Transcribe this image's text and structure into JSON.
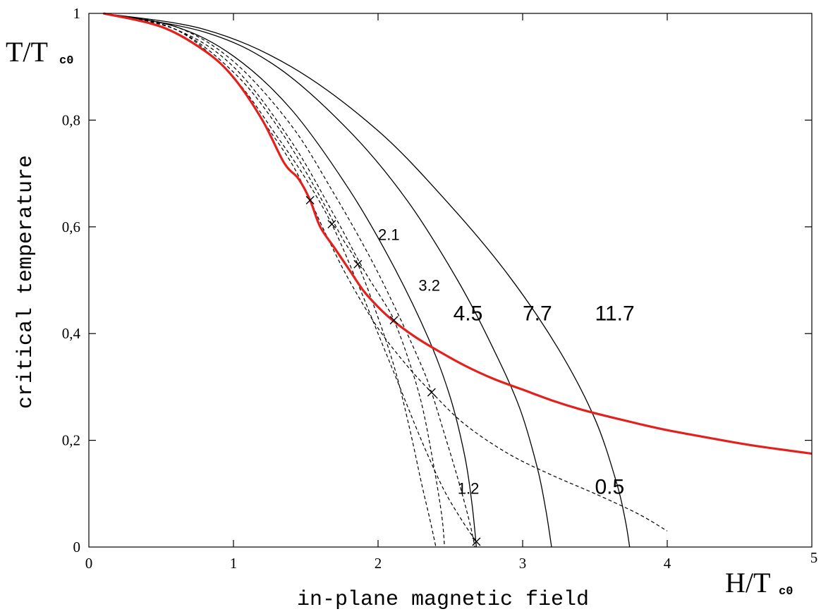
{
  "chart_data": {
    "type": "line",
    "xlabel": "in-plane magnetic field",
    "ylabel": "critical temperature",
    "x_unit": {
      "main": "H/T",
      "sub": "c0"
    },
    "y_unit": {
      "main": "T/T",
      "sub": "c0"
    },
    "xlim": [
      0,
      5
    ],
    "ylim": [
      0,
      1
    ],
    "x_ticks": [
      0,
      1,
      2,
      3,
      4,
      5
    ],
    "x_tick_labels": [
      "0",
      "1",
      "2",
      "3",
      "4",
      "5"
    ],
    "y_ticks": [
      0,
      0.2,
      0.4,
      0.6,
      0.8,
      1
    ],
    "y_tick_labels": [
      "0",
      "0,2",
      "0,4",
      "0,6",
      "0,8",
      "1"
    ],
    "grid": false,
    "series": [
      {
        "style": "thick-red",
        "color": "#e3201b",
        "x": [
          0.1,
          0.5,
          0.8,
          1.0,
          1.2,
          1.35,
          1.45,
          1.53,
          1.6,
          1.7,
          1.8,
          1.9,
          2.0,
          2.1,
          2.25,
          2.4,
          2.6,
          2.8,
          3.0,
          3.2,
          3.4,
          3.6,
          3.8,
          4.0,
          4.3,
          4.6,
          5.0
        ],
        "y": [
          1.0,
          0.975,
          0.93,
          0.88,
          0.8,
          0.72,
          0.69,
          0.65,
          0.6,
          0.56,
          0.52,
          0.48,
          0.45,
          0.425,
          0.395,
          0.37,
          0.34,
          0.315,
          0.295,
          0.275,
          0.258,
          0.244,
          0.231,
          0.219,
          0.204,
          0.19,
          0.175
        ]
      },
      {
        "style": "dashed",
        "label": "0.5",
        "x": [
          0.1,
          0.5,
          0.8,
          1.0,
          1.2,
          1.4,
          1.53,
          1.65,
          1.8,
          2.0,
          2.2,
          2.37,
          2.6,
          2.9,
          3.2,
          3.5,
          3.8,
          4.0
        ],
        "y": [
          1.0,
          0.975,
          0.93,
          0.88,
          0.8,
          0.72,
          0.65,
          0.58,
          0.5,
          0.41,
          0.34,
          0.29,
          0.23,
          0.175,
          0.135,
          0.1,
          0.062,
          0.03
        ]
      },
      {
        "style": "dashed",
        "label": "1.2",
        "x": [
          0.1,
          0.6,
          1.0,
          1.3,
          1.5,
          1.68,
          1.85,
          2.0,
          2.15,
          2.3,
          2.45,
          2.58,
          2.68
        ],
        "y": [
          1.0,
          0.97,
          0.88,
          0.77,
          0.69,
          0.605,
          0.5,
          0.4,
          0.3,
          0.2,
          0.11,
          0.05,
          0.01
        ]
      },
      {
        "style": "dashed",
        "x": [
          0.1,
          0.6,
          1.0,
          1.3,
          1.55,
          1.75,
          1.86,
          2.0,
          2.12,
          2.22,
          2.3,
          2.36,
          2.4
        ],
        "y": [
          1.0,
          0.97,
          0.89,
          0.79,
          0.68,
          0.58,
          0.53,
          0.43,
          0.33,
          0.22,
          0.12,
          0.05,
          0.0
        ]
      },
      {
        "style": "dashed",
        "label": "2.1",
        "x": [
          0.1,
          0.6,
          1.0,
          1.4,
          1.7,
          1.9,
          2.05,
          2.11,
          2.2,
          2.3,
          2.38,
          2.44,
          2.46
        ],
        "y": [
          1.0,
          0.97,
          0.9,
          0.76,
          0.62,
          0.52,
          0.455,
          0.425,
          0.36,
          0.27,
          0.16,
          0.06,
          0.0
        ]
      },
      {
        "style": "dashed",
        "label": "3.2",
        "x": [
          0.1,
          0.6,
          1.0,
          1.4,
          1.7,
          1.95,
          2.15,
          2.3,
          2.37,
          2.45,
          2.55,
          2.63,
          2.67
        ],
        "y": [
          1.0,
          0.975,
          0.91,
          0.79,
          0.66,
          0.54,
          0.43,
          0.34,
          0.29,
          0.22,
          0.13,
          0.05,
          0.0
        ]
      },
      {
        "style": "solid",
        "label": "4.5",
        "x": [
          0.1,
          0.6,
          1.0,
          1.4,
          1.8,
          2.1,
          2.35,
          2.5,
          2.6,
          2.65,
          2.68
        ],
        "y": [
          1.0,
          0.975,
          0.92,
          0.82,
          0.67,
          0.53,
          0.39,
          0.28,
          0.17,
          0.08,
          0.0
        ]
      },
      {
        "style": "solid",
        "label": "7.7",
        "x": [
          0.1,
          0.8,
          1.3,
          1.8,
          2.2,
          2.55,
          2.8,
          2.98,
          3.1,
          3.16,
          3.2
        ],
        "y": [
          1.0,
          0.965,
          0.9,
          0.78,
          0.65,
          0.5,
          0.37,
          0.26,
          0.15,
          0.07,
          0.0
        ]
      },
      {
        "style": "solid",
        "label": "11.7",
        "x": [
          0.1,
          0.8,
          1.4,
          2.0,
          2.5,
          2.9,
          3.25,
          3.5,
          3.65,
          3.71,
          3.74
        ],
        "y": [
          1.0,
          0.97,
          0.9,
          0.78,
          0.64,
          0.51,
          0.37,
          0.24,
          0.12,
          0.05,
          0.0
        ]
      }
    ],
    "markers": {
      "symbol": "x",
      "x": [
        1.53,
        1.68,
        1.86,
        2.11,
        2.37,
        2.68
      ],
      "y": [
        0.65,
        0.605,
        0.53,
        0.425,
        0.29,
        0.01
      ]
    },
    "curve_labels": [
      {
        "text": "2.1",
        "x": 2.0,
        "y": 0.575,
        "size": "small"
      },
      {
        "text": "3.2",
        "x": 2.28,
        "y": 0.48,
        "size": "small"
      },
      {
        "text": "4.5",
        "x": 2.52,
        "y": 0.425,
        "size": "large"
      },
      {
        "text": "7.7",
        "x": 3.0,
        "y": 0.425,
        "size": "large"
      },
      {
        "text": "11.7",
        "x": 3.5,
        "y": 0.425,
        "size": "large"
      },
      {
        "text": "1.2",
        "x": 2.55,
        "y": 0.1,
        "size": "small"
      },
      {
        "text": "0.5",
        "x": 3.5,
        "y": 0.1,
        "size": "large"
      }
    ]
  }
}
